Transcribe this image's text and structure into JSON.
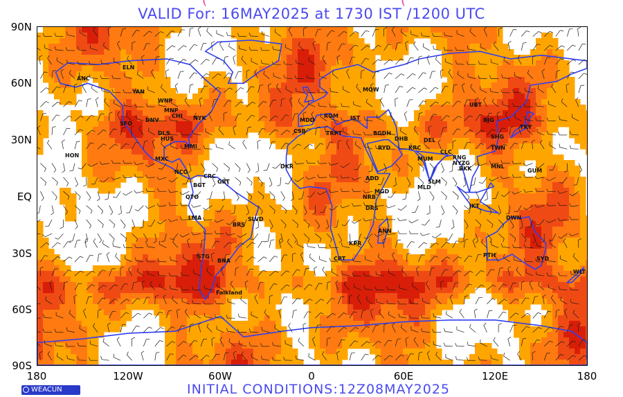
{
  "header": {
    "valid_text": "VALID For: 16MAY2025 at 1730 IST /1200 UTC"
  },
  "footer": {
    "initial_conditions": "INITIAL CONDITIONS:12Z08MAY2025",
    "logo_text": "WEACUN"
  },
  "axes": {
    "lat_labels": [
      "90N",
      "60N",
      "30N",
      "EQ",
      "30S",
      "60S",
      "90S"
    ],
    "lon_labels": [
      "180",
      "120W",
      "60W",
      "0",
      "60E",
      "120E",
      "180"
    ]
  },
  "colors": {
    "background": "#ffffff",
    "title_text": "#4a4af0",
    "coastline": "#2f3ff0",
    "wind_light": "#ffa500",
    "wind_medium": "#ff7a10",
    "wind_strong": "#f04a14",
    "wind_jet": "#d81e08",
    "barb": "#1a1a1a"
  },
  "stations": [
    {
      "name": "ANC"
    },
    {
      "name": "ELN"
    },
    {
      "name": "YAN"
    },
    {
      "name": "WNP"
    },
    {
      "name": "MNP"
    },
    {
      "name": "SFO"
    },
    {
      "name": "DNV"
    },
    {
      "name": "CHI"
    },
    {
      "name": "NYK"
    },
    {
      "name": "DLS"
    },
    {
      "name": "HUS"
    },
    {
      "name": "HON"
    },
    {
      "name": "MXC"
    },
    {
      "name": "MMI"
    },
    {
      "name": "NCO"
    },
    {
      "name": "BGT"
    },
    {
      "name": "CRC"
    },
    {
      "name": "GRT"
    },
    {
      "name": "QTO"
    },
    {
      "name": "LMA"
    },
    {
      "name": "BRS"
    },
    {
      "name": "SLVD"
    },
    {
      "name": "STG"
    },
    {
      "name": "BNA"
    },
    {
      "name": "Falkland"
    },
    {
      "name": "DKR"
    },
    {
      "name": "CSB"
    },
    {
      "name": "TRPT"
    },
    {
      "name": "MDD"
    },
    {
      "name": "ROM"
    },
    {
      "name": "IST"
    },
    {
      "name": "MOW"
    },
    {
      "name": "BGDH"
    },
    {
      "name": "RYD"
    },
    {
      "name": "ADD"
    },
    {
      "name": "NRB"
    },
    {
      "name": "DRS"
    },
    {
      "name": "MGD"
    },
    {
      "name": "ANN"
    },
    {
      "name": "KPR"
    },
    {
      "name": "DHB"
    },
    {
      "name": "KRC"
    },
    {
      "name": "MUM"
    },
    {
      "name": "DEL"
    },
    {
      "name": "CLC"
    },
    {
      "name": "MLD"
    },
    {
      "name": "SLM"
    },
    {
      "name": "NYZG"
    },
    {
      "name": "BKK"
    },
    {
      "name": "SHG"
    },
    {
      "name": "BJG"
    },
    {
      "name": "UBT"
    },
    {
      "name": "TKY"
    },
    {
      "name": "TWN"
    },
    {
      "name": "MNL"
    },
    {
      "name": "GUM"
    },
    {
      "name": "DWN"
    },
    {
      "name": "PTH"
    },
    {
      "name": "SYD"
    },
    {
      "name": "WLT"
    },
    {
      "name": "CPT"
    },
    {
      "name": "JKT"
    },
    {
      "name": "RNG"
    }
  ]
}
